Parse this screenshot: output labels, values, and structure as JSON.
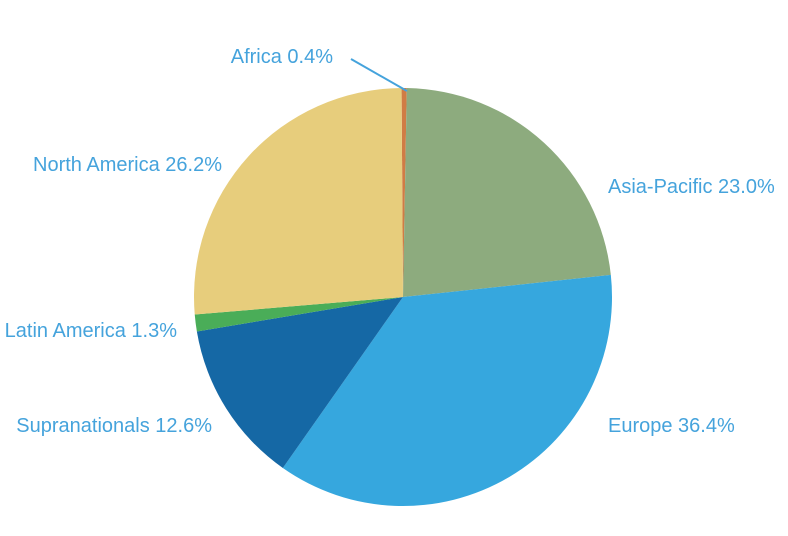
{
  "chart_data": {
    "type": "pie",
    "title": "",
    "categories": [
      "Africa",
      "Asia-Pacific",
      "Europe",
      "Supranationals",
      "Latin America",
      "North America"
    ],
    "values": [
      0.4,
      23.0,
      36.4,
      12.6,
      1.3,
      26.2
    ],
    "slices": [
      {
        "label": "Africa",
        "value": 0.4,
        "display": "Africa 0.4%",
        "color": "#d07c45"
      },
      {
        "label": "Asia-Pacific",
        "value": 23.0,
        "display": "Asia-Pacific 23.0%",
        "color": "#8dab7e"
      },
      {
        "label": "Europe",
        "value": 36.4,
        "display": "Europe 36.4%",
        "color": "#36a7de"
      },
      {
        "label": "Supranationals",
        "value": 12.6,
        "display": "Supranationals 12.6%",
        "color": "#1568a5"
      },
      {
        "label": "Latin America",
        "value": 1.3,
        "display": "Latin America 1.3%",
        "color": "#4aad58"
      },
      {
        "label": "North America",
        "value": 26.2,
        "display": "North America 26.2%",
        "color": "#e7cd7c"
      }
    ],
    "start_angle_deg": -0.4,
    "direction": "clockwise",
    "label_color": "#45a3dc",
    "leader_line": {
      "for": "Africa",
      "color": "#45a3dc"
    },
    "legend": "none",
    "units": "%"
  }
}
